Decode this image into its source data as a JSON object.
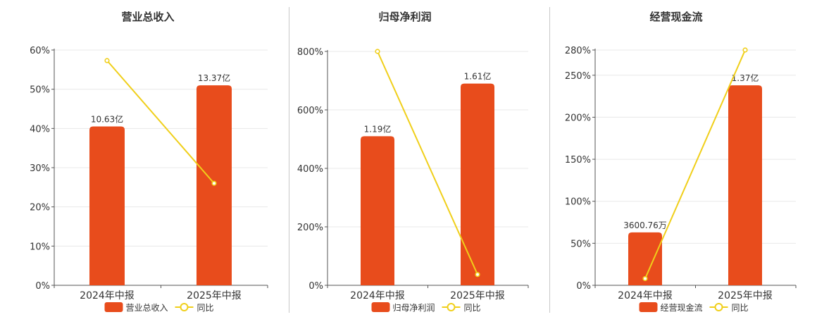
{
  "colors": {
    "bar": "#e84c1c",
    "line": "#f0cf1a",
    "grid": "#e8e8e8",
    "axis": "#555555",
    "text": "#333333"
  },
  "chart_data": [
    {
      "type": "bar",
      "title": "营业总收入",
      "categories": [
        "2024年中报",
        "2025年中报"
      ],
      "series": [
        {
          "name": "营业总收入",
          "kind": "bar",
          "axis": "left",
          "values": [
            40.5,
            51.0
          ],
          "labels": [
            "10.63亿",
            "13.37亿"
          ]
        },
        {
          "name": "同比",
          "kind": "line",
          "axis": "left",
          "values": [
            57.3,
            26.0
          ]
        }
      ],
      "y_axis": {
        "min": 0,
        "max": 60,
        "ticks": [
          "0%",
          "10%",
          "20%",
          "30%",
          "40%",
          "50%",
          "60%"
        ],
        "tick_values": [
          0,
          10,
          20,
          30,
          40,
          50,
          60
        ]
      },
      "grid": true,
      "legend": "bottom-center"
    },
    {
      "type": "bar",
      "title": "归母净利润",
      "categories": [
        "2024年中报",
        "2025年中报"
      ],
      "series": [
        {
          "name": "归母净利润",
          "kind": "bar",
          "axis": "left",
          "values": [
            510,
            690
          ],
          "labels": [
            "1.19亿",
            "1.61亿"
          ]
        },
        {
          "name": "同比",
          "kind": "line",
          "axis": "left",
          "values": [
            800,
            37
          ]
        }
      ],
      "y_axis": {
        "min": 0,
        "max": 800,
        "ticks": [
          "0%",
          "200%",
          "400%",
          "600%",
          "800%"
        ],
        "tick_values": [
          0,
          200,
          400,
          600,
          800
        ]
      },
      "grid": true,
      "legend": "bottom-center"
    },
    {
      "type": "bar",
      "title": "经营现金流",
      "categories": [
        "2024年中报",
        "2025年中报"
      ],
      "series": [
        {
          "name": "经营现金流",
          "kind": "bar",
          "axis": "left",
          "values": [
            63,
            238
          ],
          "labels": [
            "3600.76万",
            "1.37亿"
          ]
        },
        {
          "name": "同比",
          "kind": "line",
          "axis": "left",
          "values": [
            8,
            280
          ]
        }
      ],
      "y_axis": {
        "min": 0,
        "max": 280,
        "ticks": [
          "0%",
          "50%",
          "100%",
          "150%",
          "200%",
          "250%",
          "280%"
        ],
        "tick_values": [
          0,
          50,
          100,
          150,
          200,
          250,
          280
        ]
      },
      "grid": true,
      "legend": "bottom-center"
    }
  ]
}
